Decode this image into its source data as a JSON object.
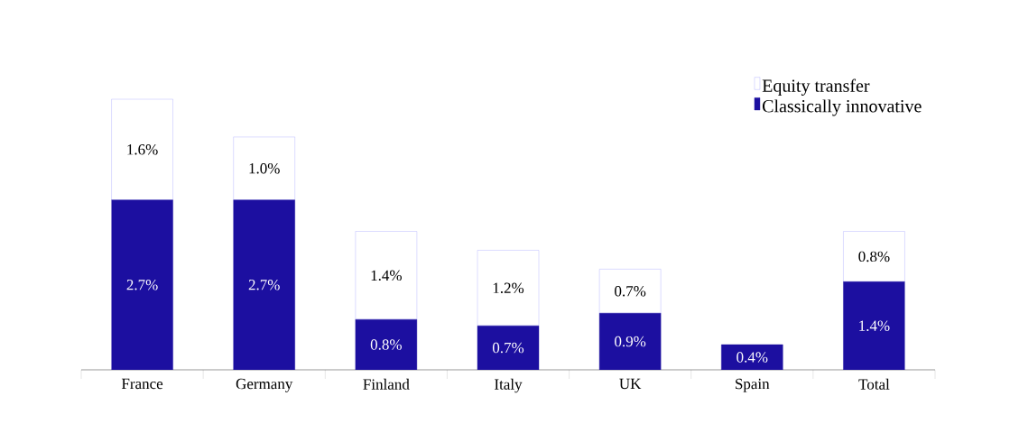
{
  "chart_data": {
    "type": "bar",
    "stacked": true,
    "legend": "top right",
    "categories": [
      "France",
      "Germany",
      "Finland",
      "Italy",
      "UK",
      "Spain",
      "Total"
    ],
    "series": [
      {
        "name": "Classically innovative",
        "color": "#1c0fa0",
        "values": [
          2.7,
          2.7,
          0.8,
          0.7,
          0.9,
          0.4,
          1.4
        ],
        "value_labels": [
          "2.7%",
          "2.7%",
          "0.8%",
          "0.7%",
          "0.9%",
          "0.4%",
          "1.4%"
        ]
      },
      {
        "name": "Equity transfer",
        "color": "#ffffff",
        "values": [
          1.6,
          1.0,
          1.4,
          1.2,
          0.7,
          null,
          0.8
        ],
        "value_labels": [
          "1.6%",
          "1.0%",
          "1.4%",
          "1.2%",
          "0.7%",
          null,
          "0.8%"
        ]
      }
    ]
  }
}
